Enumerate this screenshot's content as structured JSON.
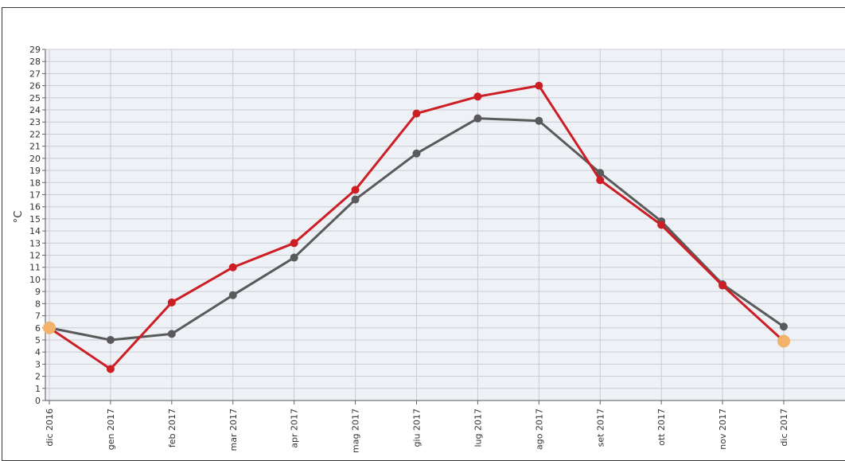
{
  "chart_data": {
    "type": "line",
    "title": "",
    "xlabel": "",
    "ylabel": "°C",
    "ylim": [
      0,
      29
    ],
    "y_ticks": [
      0,
      1,
      2,
      3,
      4,
      5,
      6,
      7,
      8,
      9,
      10,
      11,
      12,
      13,
      14,
      15,
      16,
      17,
      18,
      19,
      20,
      21,
      22,
      23,
      24,
      25,
      26,
      27,
      28,
      29
    ],
    "grid": true,
    "legend": "none",
    "categories": [
      "dic 2016",
      "gen 2017",
      "feb 2017",
      "mar 2017",
      "apr 2017",
      "mag 2017",
      "giu 2017",
      "lug 2017",
      "ago 2017",
      "set 2017",
      "ott 2017",
      "nov 2017",
      "dic 2017"
    ],
    "series": [
      {
        "color": "#5a5a5a",
        "values": [
          6.0,
          5.0,
          5.5,
          8.7,
          11.8,
          16.6,
          20.4,
          23.3,
          23.1,
          18.8,
          14.8,
          9.6,
          6.1
        ]
      },
      {
        "color": "#cc1e24",
        "values": [
          6.0,
          2.6,
          8.1,
          11.0,
          13.0,
          17.4,
          23.7,
          25.1,
          26.0,
          18.2,
          14.5,
          9.5,
          4.9
        ]
      }
    ],
    "highlight_color": "#f3b26a"
  }
}
